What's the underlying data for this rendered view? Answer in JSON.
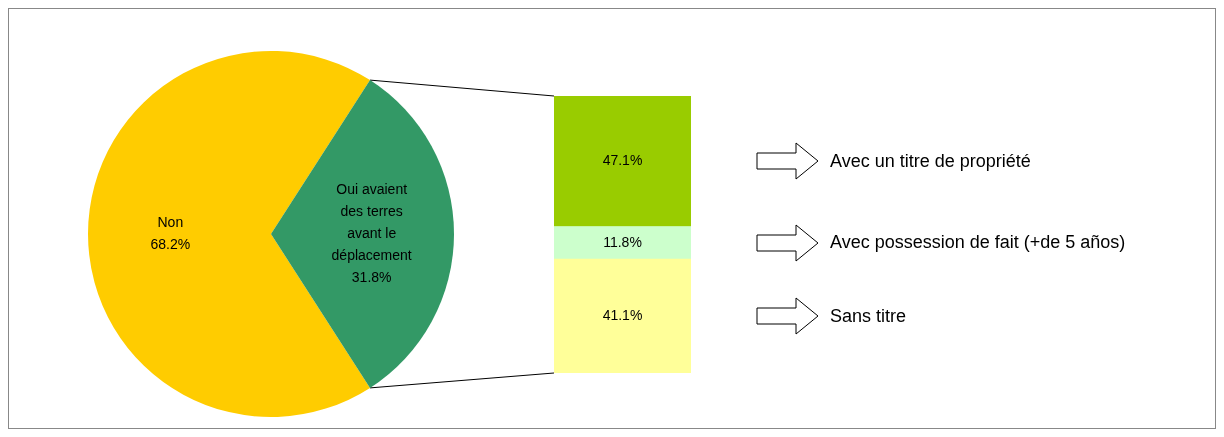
{
  "chart_data": [
    {
      "type": "pie",
      "categories": [
        "Non",
        "Oui avaient des terres avant le déplacement"
      ],
      "values": [
        68.2,
        31.8
      ],
      "value_labels": [
        "68.2%",
        "31.8%"
      ],
      "colors": [
        "#ffcc00",
        "#339966"
      ]
    },
    {
      "type": "bar",
      "stacked": true,
      "categories": [
        null
      ],
      "legend": "right",
      "series": [
        {
          "name": "Sans titre",
          "color": "#ffff99",
          "values": [
            41.1
          ],
          "value_labels": [
            "41.1%"
          ]
        },
        {
          "name": "Avec possession de fait (+de 5 años)",
          "color": "#ccffcc",
          "values": [
            11.8
          ],
          "value_labels": [
            "11.8%"
          ]
        },
        {
          "name": "Avec un titre de propriété",
          "color": "#99cc00",
          "values": [
            47.1
          ],
          "value_labels": [
            "47.1%"
          ]
        }
      ]
    }
  ]
}
